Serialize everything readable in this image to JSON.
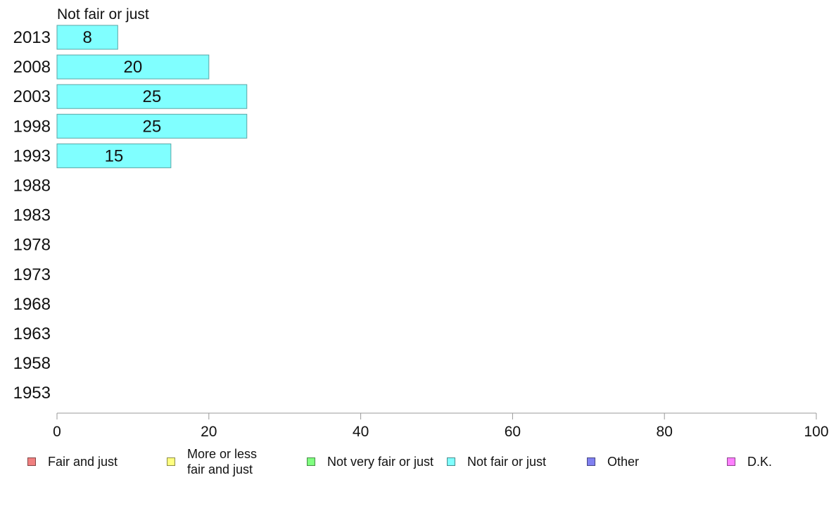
{
  "chart_data": {
    "type": "bar",
    "orientation": "horizontal",
    "title": "Not fair or just",
    "categories": [
      "2013",
      "2008",
      "2003",
      "1998",
      "1993",
      "1988",
      "1983",
      "1978",
      "1973",
      "1968",
      "1963",
      "1958",
      "1953"
    ],
    "series": [
      {
        "name": "Not fair or just",
        "color": "#80FFFF",
        "values": [
          8,
          20,
          25,
          25,
          15,
          null,
          null,
          null,
          null,
          null,
          null,
          null,
          null
        ],
        "labels": [
          "8",
          "20",
          "25",
          "25",
          "15",
          "",
          "",
          "",
          "",
          "",
          "",
          "",
          ""
        ]
      }
    ],
    "xlim": [
      0,
      100
    ],
    "xticks": [
      0,
      20,
      40,
      60,
      80,
      100
    ],
    "xlabel": "",
    "ylabel": "",
    "grid": false,
    "legend_position": "bottom"
  },
  "legend": [
    {
      "label": "Fair and just",
      "color": "#F08080"
    },
    {
      "label": "More or less\nfair and just",
      "color": "#FFFF80"
    },
    {
      "label": "Not very fair or just",
      "color": "#80FF80"
    },
    {
      "label": "Not fair or just",
      "color": "#80FFFF"
    },
    {
      "label": "Other",
      "color": "#8080F0"
    },
    {
      "label": "D.K.",
      "color": "#FF80FF"
    }
  ]
}
